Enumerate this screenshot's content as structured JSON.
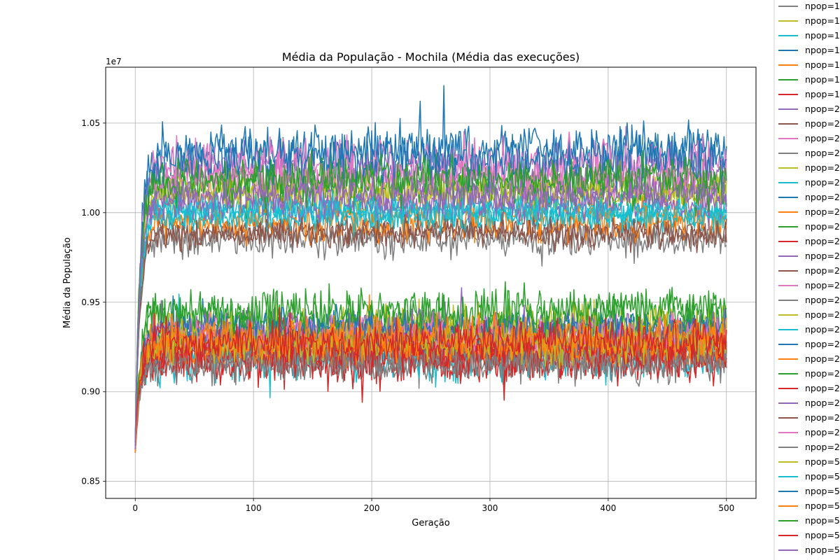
{
  "chart_data": {
    "type": "line",
    "title": "Média da População - Mochila (Média das execuções)",
    "xlabel": "Geração",
    "ylabel": "Média da População",
    "y_offset_label": "1e7",
    "xlim": [
      -25,
      525
    ],
    "ylim": [
      0.8405,
      1.0812
    ],
    "x_ticks": [
      0,
      100,
      200,
      300,
      400,
      500
    ],
    "y_ticks": [
      0.85,
      0.9,
      0.95,
      1.0,
      1.05
    ],
    "y_tick_labels": [
      "0.85",
      "0.90",
      "0.95",
      "1.00",
      "1.05"
    ],
    "grid": true,
    "legend_placement": "outside-right",
    "generations": 501,
    "series": [
      {
        "name": "npop=1",
        "color": "#7f7f7f",
        "start": 0.87,
        "plateau": 0.922,
        "noise": 0.007
      },
      {
        "name": "npop=1",
        "color": "#bcbd22",
        "start": 0.872,
        "plateau": 1.01,
        "noise": 0.006
      },
      {
        "name": "npop=1",
        "color": "#17becf",
        "start": 0.868,
        "plateau": 0.92,
        "noise": 0.009
      },
      {
        "name": "npop=1",
        "color": "#1f77b4",
        "start": 0.866,
        "plateau": 1.035,
        "noise": 0.009
      },
      {
        "name": "npop=1",
        "color": "#ff7f0e",
        "start": 0.874,
        "plateau": 0.928,
        "noise": 0.007
      },
      {
        "name": "npop=1",
        "color": "#2ca02c",
        "start": 0.872,
        "plateau": 0.94,
        "noise": 0.009
      },
      {
        "name": "npop=1",
        "color": "#d62728",
        "start": 0.868,
        "plateau": 0.92,
        "noise": 0.008
      },
      {
        "name": "npop=2",
        "color": "#9467bd",
        "start": 0.866,
        "plateau": 1.022,
        "noise": 0.007
      },
      {
        "name": "npop=2",
        "color": "#8c564b",
        "start": 0.87,
        "plateau": 0.99,
        "noise": 0.005
      },
      {
        "name": "npop=2",
        "color": "#e377c2",
        "start": 0.868,
        "plateau": 1.028,
        "noise": 0.008
      },
      {
        "name": "npop=2",
        "color": "#7f7f7f",
        "start": 0.872,
        "plateau": 0.985,
        "noise": 0.006
      },
      {
        "name": "npop=2",
        "color": "#bcbd22",
        "start": 0.87,
        "plateau": 0.935,
        "noise": 0.008
      },
      {
        "name": "npop=2",
        "color": "#17becf",
        "start": 0.866,
        "plateau": 1.0,
        "noise": 0.005
      },
      {
        "name": "npop=2",
        "color": "#1f77b4",
        "start": 0.868,
        "plateau": 0.93,
        "noise": 0.007
      },
      {
        "name": "npop=2",
        "color": "#ff7f0e",
        "start": 0.87,
        "plateau": 0.995,
        "noise": 0.007
      },
      {
        "name": "npop=2",
        "color": "#2ca02c",
        "start": 0.872,
        "plateau": 1.015,
        "noise": 0.008
      },
      {
        "name": "npop=2",
        "color": "#d62728",
        "start": 0.87,
        "plateau": 0.925,
        "noise": 0.008
      },
      {
        "name": "npop=2",
        "color": "#9467bd",
        "start": 0.868,
        "plateau": 0.935,
        "noise": 0.007
      },
      {
        "name": "npop=2",
        "color": "#8c564b",
        "start": 0.866,
        "plateau": 0.928,
        "noise": 0.006
      },
      {
        "name": "npop=2",
        "color": "#e377c2",
        "start": 0.87,
        "plateau": 0.932,
        "noise": 0.007
      },
      {
        "name": "npop=2",
        "color": "#7f7f7f",
        "start": 0.872,
        "plateau": 0.918,
        "noise": 0.006
      },
      {
        "name": "npop=2",
        "color": "#bcbd22",
        "start": 0.868,
        "plateau": 1.012,
        "noise": 0.006
      },
      {
        "name": "npop=2",
        "color": "#17becf",
        "start": 0.866,
        "plateau": 0.998,
        "noise": 0.005
      },
      {
        "name": "npop=2",
        "color": "#1f77b4",
        "start": 0.87,
        "plateau": 0.935,
        "noise": 0.006
      },
      {
        "name": "npop=2",
        "color": "#ff7f0e",
        "start": 0.872,
        "plateau": 0.924,
        "noise": 0.006
      },
      {
        "name": "npop=2",
        "color": "#2ca02c",
        "start": 0.868,
        "plateau": 0.945,
        "noise": 0.008
      },
      {
        "name": "npop=2",
        "color": "#d62728",
        "start": 0.866,
        "plateau": 0.918,
        "noise": 0.008
      },
      {
        "name": "npop=2",
        "color": "#9467bd",
        "start": 0.87,
        "plateau": 1.005,
        "noise": 0.006
      },
      {
        "name": "npop=2",
        "color": "#8c564b",
        "start": 0.872,
        "plateau": 0.988,
        "noise": 0.005
      },
      {
        "name": "npop=2",
        "color": "#e377c2",
        "start": 0.868,
        "plateau": 1.02,
        "noise": 0.007
      },
      {
        "name": "npop=2",
        "color": "#7f7f7f",
        "start": 0.866,
        "plateau": 0.915,
        "noise": 0.006
      },
      {
        "name": "npop=5",
        "color": "#bcbd22",
        "start": 0.87,
        "plateau": 0.928,
        "noise": 0.007
      },
      {
        "name": "npop=5",
        "color": "#17becf",
        "start": 0.872,
        "plateau": 1.002,
        "noise": 0.005
      },
      {
        "name": "npop=5",
        "color": "#1f77b4",
        "start": 0.868,
        "plateau": 1.03,
        "noise": 0.009
      },
      {
        "name": "npop=5",
        "color": "#ff7f0e",
        "start": 0.866,
        "plateau": 0.93,
        "noise": 0.007
      },
      {
        "name": "npop=5",
        "color": "#2ca02c",
        "start": 0.87,
        "plateau": 1.018,
        "noise": 0.008
      },
      {
        "name": "npop=5",
        "color": "#d62728",
        "start": 0.872,
        "plateau": 0.928,
        "noise": 0.007
      },
      {
        "name": "npop=5",
        "color": "#9467bd",
        "start": 0.868,
        "plateau": 1.01,
        "noise": 0.006
      }
    ]
  }
}
